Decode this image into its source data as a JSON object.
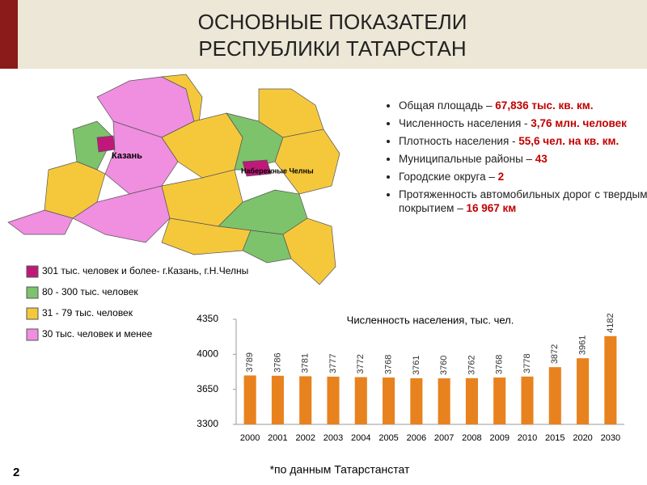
{
  "header": {
    "title_line1": "ОСНОВНЫЕ  ПОКАЗАТЕЛИ",
    "title_line2": "РЕСПУБЛИКИ  ТАТАРСТАН"
  },
  "bullets": [
    {
      "label": "Общая площадь – ",
      "value": "67,836 тыс. кв. км."
    },
    {
      "label": "Численность населения - ",
      "value": "3,76 млн. человек"
    },
    {
      "label": "Плотность населения - ",
      "value": "55,6 чел. на кв. км."
    },
    {
      "label": "Муниципальные районы – ",
      "value": "43"
    },
    {
      "label": "Городские округа – ",
      "value": "2"
    },
    {
      "label": "Протяженность автомобильных дорог с твердым покрытием – ",
      "value": "16 967 км"
    }
  ],
  "map": {
    "labels": [
      "Казань",
      "Набережные Челны"
    ]
  },
  "legend": [
    {
      "label": "301 тыс. человек и более- г.Казань, г.Н.Челны",
      "color": "#c0187a"
    },
    {
      "label": "80 - 300 тыс. человек",
      "color": "#7dc36b"
    },
    {
      "label": "31 - 79 тыс. человек",
      "color": "#f5c83c"
    },
    {
      "label": "30 тыс. человек и менее",
      "color": "#f08ee0"
    }
  ],
  "chart_data": {
    "type": "bar",
    "title": "Численность населения, тыс. чел.",
    "categories": [
      "2000",
      "2001",
      "2002",
      "2003",
      "2004",
      "2005",
      "2006",
      "2007",
      "2008",
      "2009",
      "2010",
      "2015",
      "2020",
      "2030"
    ],
    "values": [
      3789,
      3786,
      3781,
      3777,
      3772,
      3768,
      3761,
      3760,
      3762,
      3768,
      3778,
      3872,
      3961,
      4182
    ],
    "color": "#e8821e",
    "ylim": [
      3300,
      4350
    ],
    "yticks": [
      3300,
      3650,
      4000,
      4350
    ]
  },
  "footer": {
    "page": "2",
    "note": "*по данным Татарстанстат"
  }
}
